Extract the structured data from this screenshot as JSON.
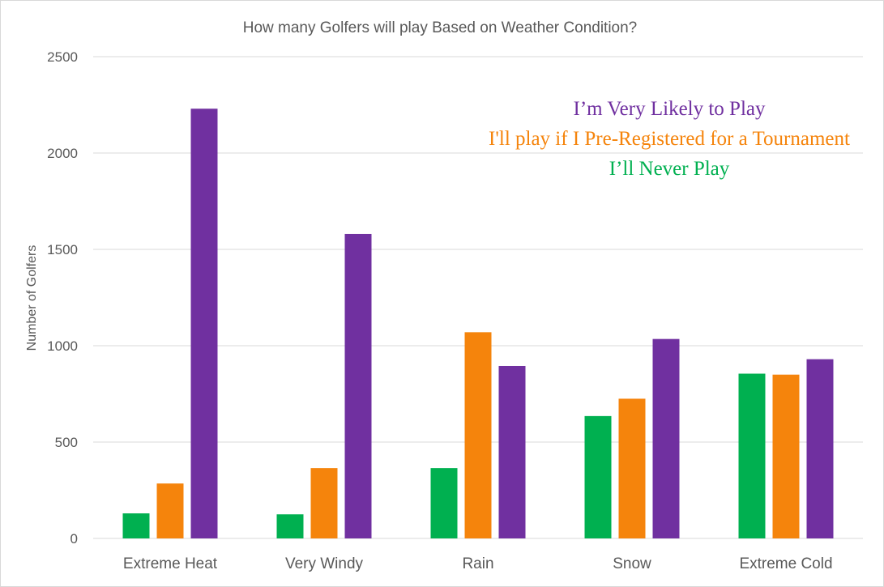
{
  "chart_data": {
    "type": "bar",
    "title": "How many Golfers will play Based on Weather Condition?",
    "xlabel": "",
    "ylabel": "Number of Golfers",
    "ylim": [
      0,
      2500
    ],
    "yticks": [
      0,
      500,
      1000,
      1500,
      2000,
      2500
    ],
    "grid": true,
    "legend_placement": "top-right",
    "categories": [
      "Extreme Heat",
      "Very Windy",
      "Rain",
      "Snow",
      "Extreme Cold"
    ],
    "series": [
      {
        "name": "I’ll Never Play",
        "color": "#00b050",
        "values": [
          130,
          125,
          365,
          635,
          855
        ]
      },
      {
        "name": "I'll play if I Pre-Registered for a Tournament",
        "color": "#f5840c",
        "values": [
          285,
          365,
          1070,
          725,
          850
        ]
      },
      {
        "name": "I’m Very Likely to Play",
        "color": "#7030a0",
        "values": [
          2230,
          1580,
          895,
          1035,
          930
        ]
      }
    ],
    "legend_order": [
      2,
      1,
      0
    ]
  }
}
